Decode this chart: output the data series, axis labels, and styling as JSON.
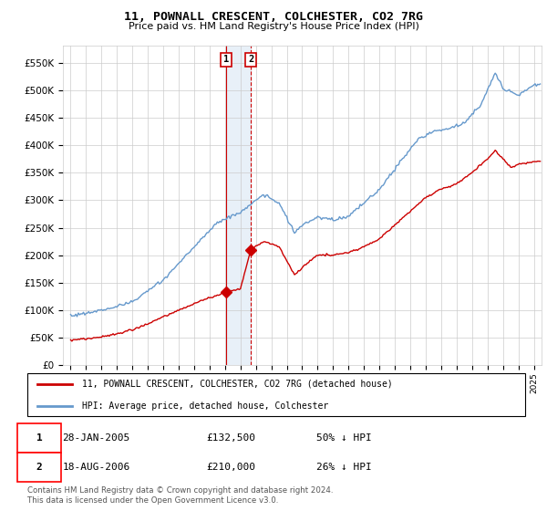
{
  "title": "11, POWNALL CRESCENT, COLCHESTER, CO2 7RG",
  "subtitle": "Price paid vs. HM Land Registry's House Price Index (HPI)",
  "legend_line1": "11, POWNALL CRESCENT, COLCHESTER, CO2 7RG (detached house)",
  "legend_line2": "HPI: Average price, detached house, Colchester",
  "footer": "Contains HM Land Registry data © Crown copyright and database right 2024.\nThis data is licensed under the Open Government Licence v3.0.",
  "transaction1_date": "28-JAN-2005",
  "transaction1_price": "£132,500",
  "transaction1_hpi": "50% ↓ HPI",
  "transaction2_date": "18-AUG-2006",
  "transaction2_price": "£210,000",
  "transaction2_hpi": "26% ↓ HPI",
  "t1_year": 2005.08,
  "t2_year": 2006.67,
  "t1_price": 132500,
  "t2_price": 210000,
  "hpi_color": "#6699CC",
  "sale_color": "#CC0000",
  "marker_color": "#CC0000",
  "vline1_color": "#CC0000",
  "vline2_color": "#CC0000",
  "highlight_color": "#E8F0F8",
  "background_color": "#FFFFFF",
  "grid_color": "#CCCCCC",
  "ylim": [
    0,
    580000
  ],
  "yticks": [
    0,
    50000,
    100000,
    150000,
    200000,
    250000,
    300000,
    350000,
    400000,
    450000,
    500000,
    550000
  ],
  "xlim_start": 1994.5,
  "xlim_end": 2025.5
}
